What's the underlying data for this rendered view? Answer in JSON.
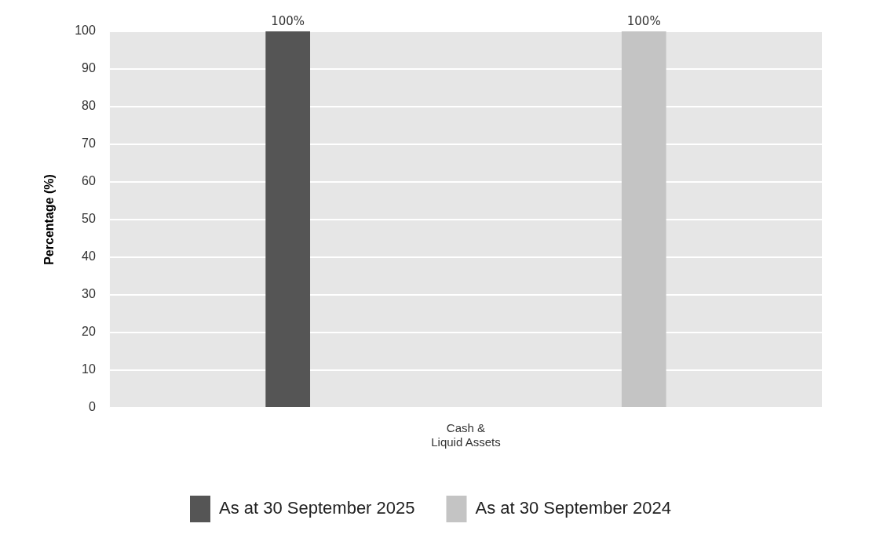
{
  "chart_data": {
    "type": "bar",
    "ylabel": "Percentage (%)",
    "categories": [
      "Cash & Liquid Assets"
    ],
    "series": [
      {
        "name": "As at 30 September 2025",
        "color": "#555555",
        "values": [
          100
        ],
        "value_labels": [
          "100%"
        ]
      },
      {
        "name": "As at 30 September 2024",
        "color": "#c4c4c4",
        "values": [
          100
        ],
        "value_labels": [
          "100%"
        ]
      }
    ],
    "ylim": [
      0,
      100
    ],
    "yticks": [
      0,
      10,
      20,
      30,
      40,
      50,
      60,
      70,
      80,
      90,
      100
    ],
    "grid": "y",
    "legend": "bottom"
  }
}
